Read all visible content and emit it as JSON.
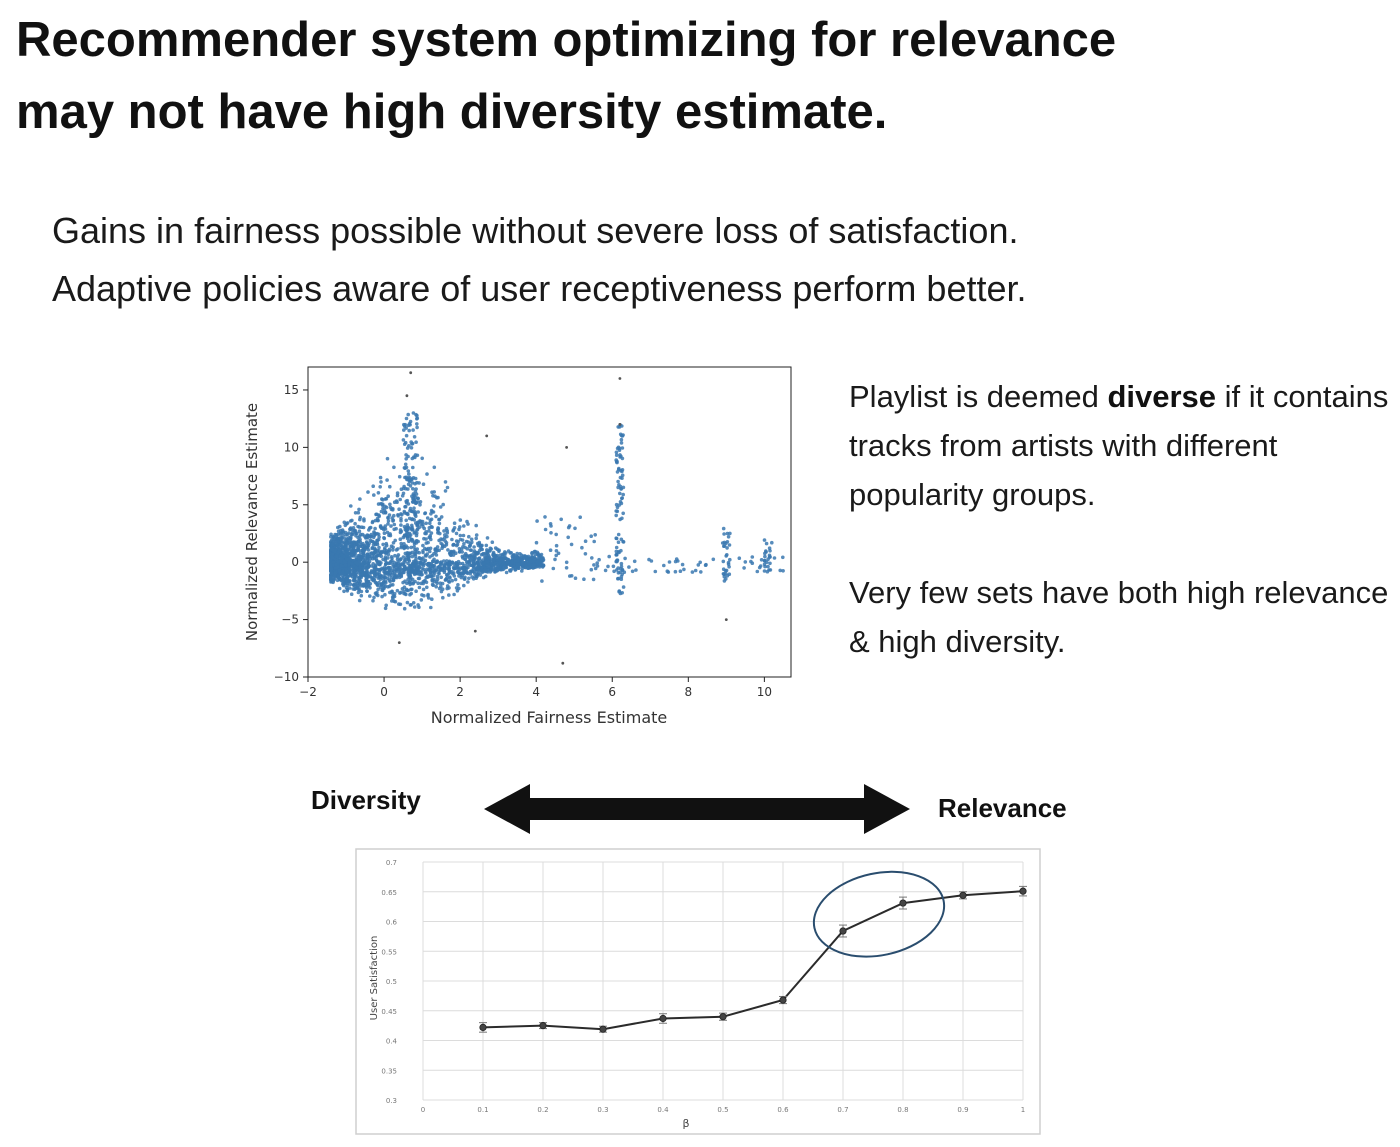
{
  "slide": {
    "title_line1": "Recommender system optimizing for relevance",
    "title_line2": "may not have high diversity estimate.",
    "subtitle_line1": "Gains in fairness possible without severe loss of satisfaction.",
    "subtitle_line2": "Adaptive policies aware of user receptiveness perform better.",
    "note1_pre": "Playlist is deemed ",
    "note1_bold": "diverse",
    "note1_post": " if it contains tracks from artists with different popularity groups.",
    "note2": "Very few sets have both high relevance & high diversity.",
    "left_label": "Diversity",
    "right_label": "Relevance"
  },
  "chart_data": [
    {
      "type": "scatter",
      "xlabel": "Normalized Fairness Estimate",
      "ylabel": "Normalized Relevance Estimate",
      "xlim": [
        -2,
        10.7
      ],
      "ylim": [
        -10,
        17
      ],
      "x_ticks": [
        -2,
        0,
        2,
        4,
        6,
        8,
        10
      ],
      "y_ticks": [
        -10,
        -5,
        0,
        5,
        10,
        15
      ],
      "x_tick_labels": [
        "−2",
        "0",
        "2",
        "4",
        "6",
        "8",
        "10"
      ],
      "y_tick_labels": [
        "−10",
        "−5",
        "0",
        "5",
        "10",
        "15"
      ],
      "color": "#3a78b0",
      "grid": false,
      "outliers": [
        [
          0.7,
          16.5
        ],
        [
          0.6,
          14.5
        ],
        [
          2.7,
          11
        ],
        [
          4.8,
          10
        ],
        [
          6.2,
          16
        ],
        [
          6.2,
          12
        ],
        [
          4.7,
          -8.8
        ],
        [
          0.4,
          -7
        ],
        [
          9,
          -5
        ],
        [
          2.4,
          -6
        ]
      ]
    },
    {
      "type": "line",
      "xlabel": "β",
      "ylabel": "User Satisfaction",
      "x": [
        0.1,
        0.2,
        0.3,
        0.4,
        0.5,
        0.6,
        0.7,
        0.8,
        0.9,
        1.0
      ],
      "series": [
        {
          "values": [
            0.422,
            0.425,
            0.419,
            0.437,
            0.44,
            0.468,
            0.584,
            0.631,
            0.644,
            0.651
          ]
        }
      ],
      "errors": [
        0.008,
        0.005,
        0.005,
        0.008,
        0.006,
        0.006,
        0.01,
        0.01,
        0.006,
        0.008
      ],
      "ylim": [
        0.3,
        0.7
      ],
      "y_ticks": [
        0.3,
        0.35,
        0.4,
        0.45,
        0.5,
        0.55,
        0.6,
        0.65,
        0.7
      ],
      "x_tick_labels": [
        "0",
        "0.1",
        "0.2",
        "0.3",
        "0.4",
        "0.5",
        "0.6",
        "0.7",
        "0.8",
        "0.9",
        "1"
      ],
      "y_tick_labels": [
        "0.3",
        "0.35",
        "0.4",
        "0.45",
        "0.5",
        "0.55",
        "0.6",
        "0.65",
        "0.7"
      ],
      "grid": true,
      "line_color": "#2b2b2b",
      "annotation": {
        "shape": "ellipse",
        "color": "#2a4d6e",
        "around_x": [
          0.7,
          0.9
        ]
      }
    }
  ]
}
